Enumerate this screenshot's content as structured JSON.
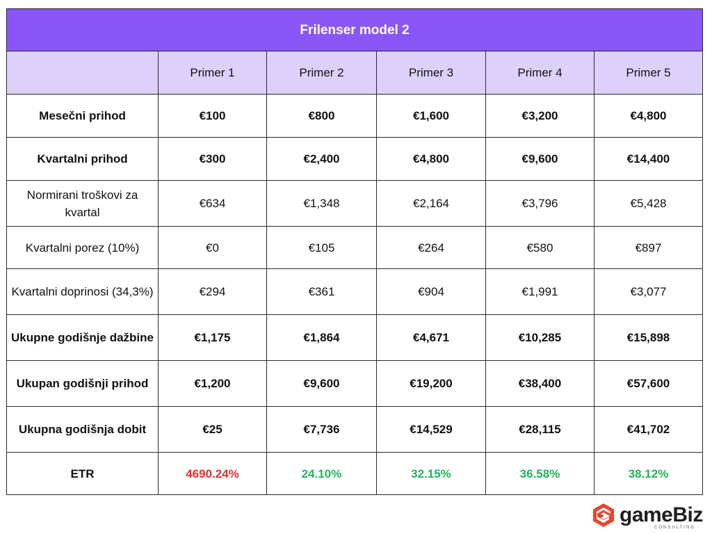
{
  "title": "Frilenser model 2",
  "columns": [
    "",
    "Primer 1",
    "Primer 2",
    "Primer 3",
    "Primer 4",
    "Primer 5"
  ],
  "rows": [
    {
      "label": "Mesečni prihod",
      "values": [
        "€100",
        "€800",
        "€1,600",
        "€3,200",
        "€4,800"
      ]
    },
    {
      "label": "Kvartalni prihod",
      "values": [
        "€300",
        "€2,400",
        "€4,800",
        "€9,600",
        "€14,400"
      ]
    },
    {
      "label": "Normirani troškovi za kvartal",
      "values": [
        "€634",
        "€1,348",
        "€2,164",
        "€3,796",
        "€5,428"
      ]
    },
    {
      "label": "Kvartalni porez (10%)",
      "values": [
        "€0",
        "€105",
        "€264",
        "€580",
        "€897"
      ]
    },
    {
      "label": "Kvartalni doprinosi (34,3%)",
      "values": [
        "€294",
        "€361",
        "€904",
        "€1,991",
        "€3,077"
      ]
    },
    {
      "label": "Ukupne godišnje dažbine",
      "values": [
        "€1,175",
        "€1,864",
        "€4,671",
        "€10,285",
        "€15,898"
      ]
    },
    {
      "label": "Ukupan godišnji prihod",
      "values": [
        "€1,200",
        "€9,600",
        "€19,200",
        "€38,400",
        "€57,600"
      ]
    },
    {
      "label": "Ukupna godišnja dobit",
      "values": [
        "€25",
        "€7,736",
        "€14,529",
        "€28,115",
        "€41,702"
      ]
    },
    {
      "label": "ETR",
      "values": [
        "4690.24%",
        "24.10%",
        "32.15%",
        "36.58%",
        "38.12%"
      ]
    }
  ],
  "colors": {
    "header_bg": "#8a56f7",
    "subheader_bg": "#ddd0fb",
    "negative": "#ef2b2b",
    "positive": "#22b45b"
  },
  "logo": {
    "text": "gameBiz",
    "subtext": "CONSULTING",
    "icon": "hexagon-s-logo-icon"
  }
}
